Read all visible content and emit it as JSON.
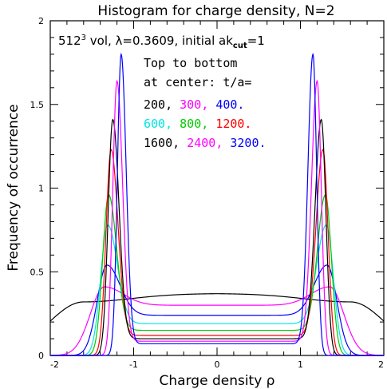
{
  "chart_data": {
    "type": "line",
    "title": "Histogram for charge density, N=2",
    "subtitle": {
      "pre": "512",
      "sup": "3",
      "mid": " vol, λ=0.3609, initial ak",
      "sub": "cut",
      "post": "=1"
    },
    "xlabel": "Charge density ρ",
    "ylabel": "Frequency of occurrence",
    "xlim": [
      -2,
      2
    ],
    "ylim": [
      0,
      2
    ],
    "x_ticks": [
      -2,
      -1,
      0,
      1,
      2
    ],
    "x_tick_labels": [
      "-2",
      "-1",
      "0",
      "1",
      "2"
    ],
    "y_ticks": [
      0,
      0.5,
      1,
      1.5,
      2
    ],
    "y_tick_labels": [
      "0",
      "0.5",
      "1",
      "1.5",
      "2"
    ],
    "legend_title_lines": [
      "Top to bottom",
      "at center: t/a="
    ],
    "legend_rows": [
      [
        "200",
        "300",
        "400"
      ],
      [
        "600",
        "800",
        "1200"
      ],
      [
        "1600",
        "2400",
        "3200"
      ]
    ],
    "series": [
      {
        "name": "200",
        "color": "#000000",
        "peak_x": 1.6,
        "peak_y": 0.32,
        "width": 0.8,
        "center": 0.37
      },
      {
        "name": "300",
        "color": "#ff00ff",
        "peak_x": 1.35,
        "peak_y": 0.41,
        "width": 0.32,
        "center": 0.3
      },
      {
        "name": "400",
        "color": "#0000ff",
        "peak_x": 1.32,
        "peak_y": 0.54,
        "width": 0.22,
        "center": 0.24
      },
      {
        "name": "600",
        "color": "#00e5e5",
        "peak_x": 1.31,
        "peak_y": 0.78,
        "width": 0.16,
        "center": 0.19
      },
      {
        "name": "800",
        "color": "#00cc00",
        "peak_x": 1.3,
        "peak_y": 0.96,
        "width": 0.135,
        "center": 0.15
      },
      {
        "name": "1200",
        "color": "#ff0000",
        "peak_x": 1.27,
        "peak_y": 1.23,
        "width": 0.115,
        "center": 0.12
      },
      {
        "name": "1600",
        "color": "#000000",
        "peak_x": 1.25,
        "peak_y": 1.41,
        "width": 0.105,
        "center": 0.1
      },
      {
        "name": "2400",
        "color": "#ff00ff",
        "peak_x": 1.2,
        "peak_y": 1.64,
        "width": 0.095,
        "center": 0.085
      },
      {
        "name": "3200",
        "color": "#0000ff",
        "peak_x": 1.15,
        "peak_y": 1.8,
        "width": 0.085,
        "center": 0.07
      }
    ],
    "grid": false,
    "legend_placement": "top-center"
  }
}
